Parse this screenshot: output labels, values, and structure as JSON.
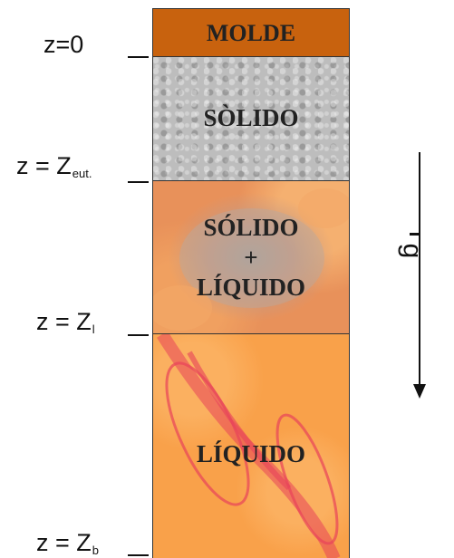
{
  "labels": {
    "z0": "z=0",
    "zeut": "z = Z",
    "zeut_sub": "eut.",
    "zl": "z = Z",
    "zl_sub": "l",
    "zb": "z = Z",
    "zb_sub": "b"
  },
  "zones": {
    "molde": "MOLDE",
    "solido": "SÒLIDO",
    "mushy_line1": "SÓLIDO",
    "mushy_line2": "+",
    "mushy_line3": "LÍQUIDO",
    "liquido": "LÍQUIDO"
  },
  "gravity": {
    "label": "g"
  },
  "colors": {
    "molde": "#c8620e",
    "solido": "#bdbdbd",
    "mushy": "#e8915a",
    "liquido": "#f9a14a",
    "streaks": "#e8435a"
  },
  "icons": {
    "gravity_arrow": "down-arrow-icon"
  }
}
